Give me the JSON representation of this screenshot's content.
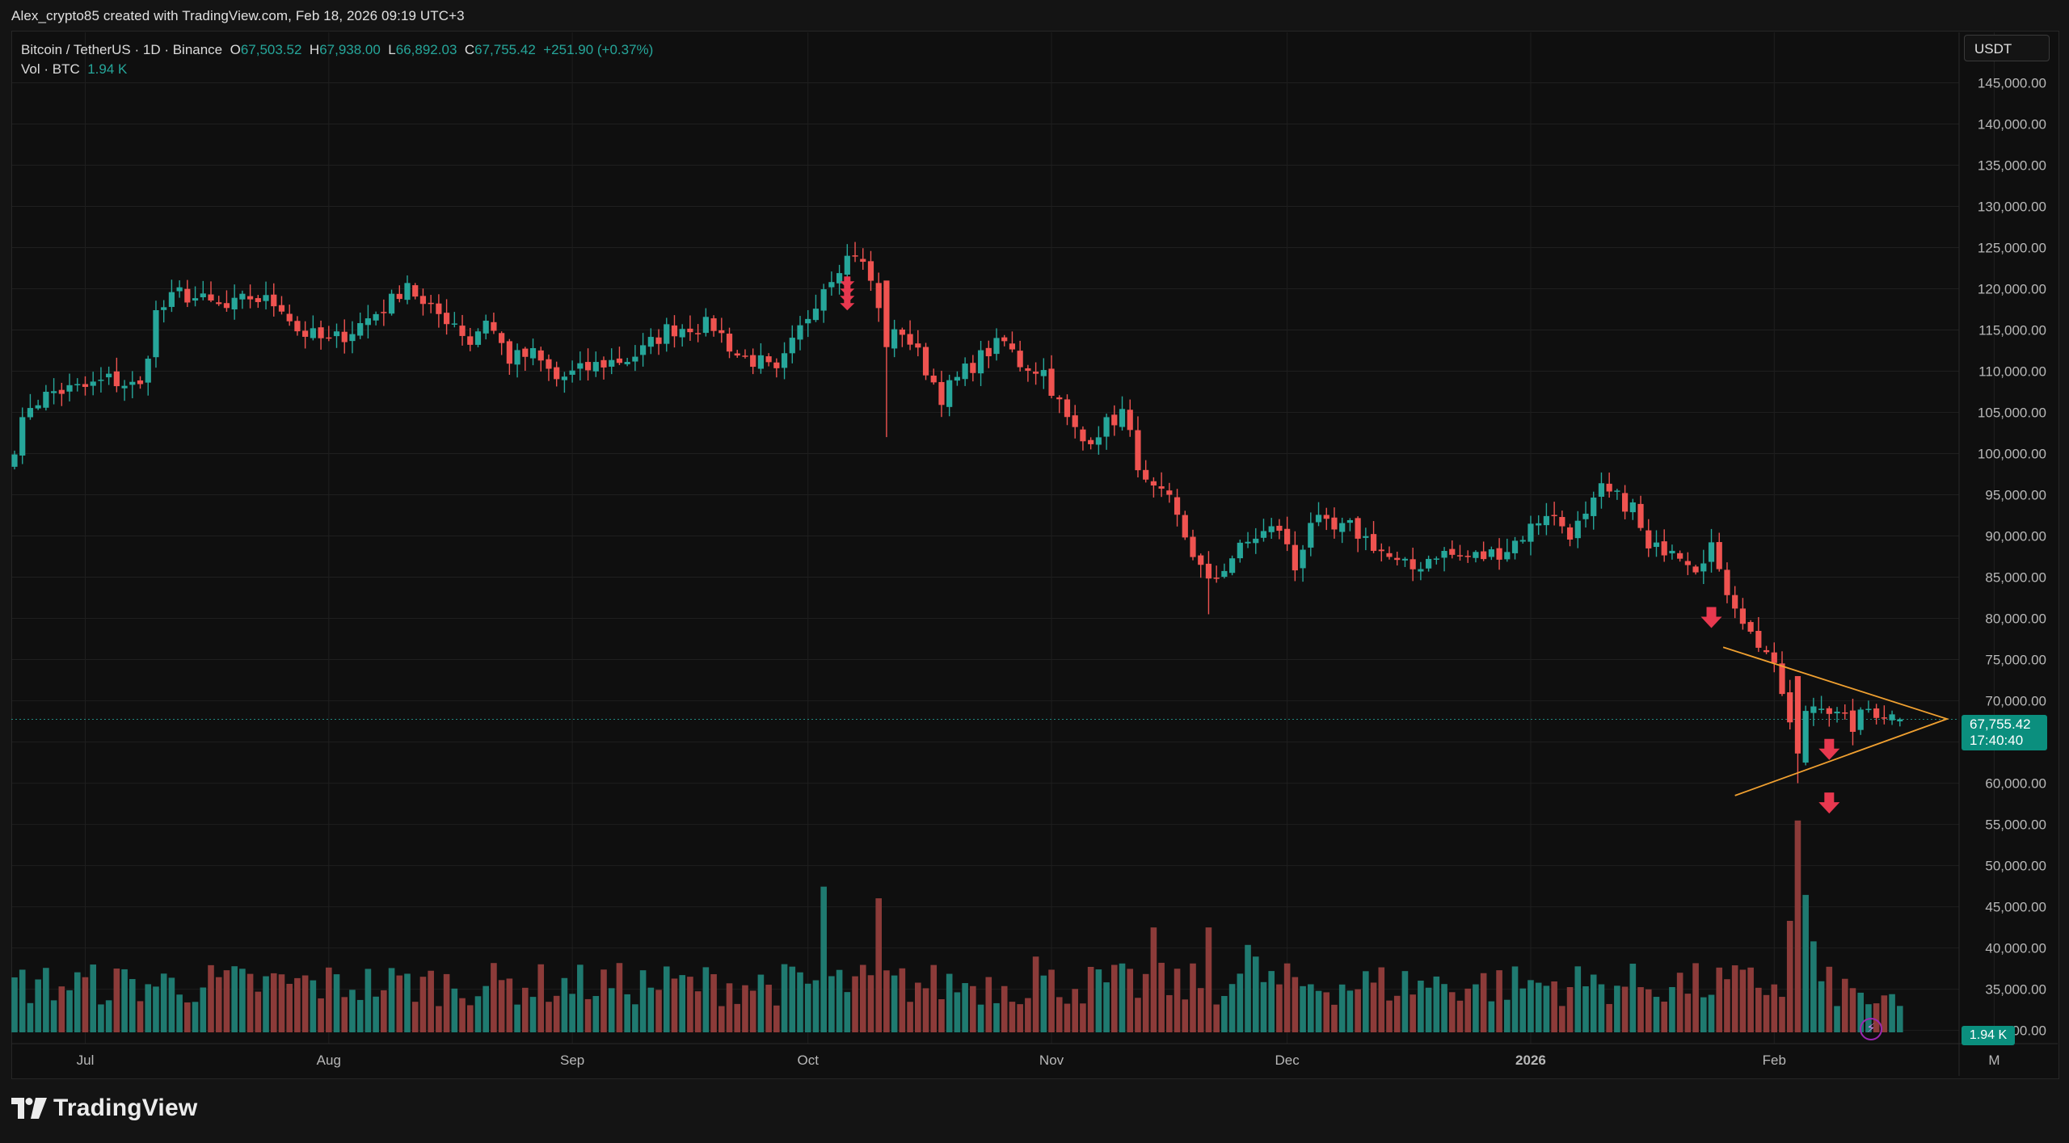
{
  "header": {
    "created_by": "Alex_crypto85 created with TradingView.com, Feb 18, 2026 09:19 UTC+3"
  },
  "legend": {
    "symbol": "Bitcoin / TetherUS · 1D · Binance",
    "open_label": "O",
    "open": "67,503.52",
    "high_label": "H",
    "high": "67,938.00",
    "low_label": "L",
    "low": "66,892.03",
    "close_label": "C",
    "close": "67,755.42",
    "change": "+251.90 (+0.37%)",
    "vol_label": "Vol · BTC",
    "vol_value": "1.94 K"
  },
  "currency": "USDT",
  "price_tag": {
    "price": "67,755.42",
    "countdown": "17:40:40"
  },
  "vol_tag": "1.94 K",
  "branding": {
    "logo_text": "TradingView"
  },
  "colors": {
    "up": "#26a69a",
    "down": "#ef5350",
    "up_vol": "#1f7a70",
    "down_vol": "#8c3b39",
    "triangle": "#f0a030",
    "arrow": "#e8384f",
    "background": "#0f0f0f",
    "grid": "#1f1f1f"
  },
  "chart_data": {
    "type": "candlestick",
    "title": "Bitcoin / TetherUS · 1D · Binance",
    "ylim": [
      29000,
      148500
    ],
    "y_ticks": [
      "145,000.00",
      "140,000.00",
      "135,000.00",
      "130,000.00",
      "125,000.00",
      "120,000.00",
      "115,000.00",
      "110,000.00",
      "105,000.00",
      "100,000.00",
      "95,000.00",
      "90,000.00",
      "85,000.00",
      "80,000.00",
      "75,000.00",
      "70,000.00",
      "65,000.00",
      "60,000.00",
      "55,000.00",
      "50,000.00",
      "45,000.00",
      "40,000.00",
      "35,000.00",
      "30,000.00"
    ],
    "y_tick_values": [
      145000,
      140000,
      135000,
      130000,
      125000,
      120000,
      115000,
      110000,
      105000,
      100000,
      95000,
      90000,
      85000,
      80000,
      75000,
      70000,
      65000,
      60000,
      55000,
      50000,
      45000,
      40000,
      35000,
      30000
    ],
    "x_ticks": [
      {
        "label": "Jul",
        "day": 9
      },
      {
        "label": "Aug",
        "day": 40
      },
      {
        "label": "Sep",
        "day": 71
      },
      {
        "label": "Oct",
        "day": 101
      },
      {
        "label": "Nov",
        "day": 132
      },
      {
        "label": "Dec",
        "day": 162
      },
      {
        "label": "2026",
        "day": 193,
        "bold": true
      },
      {
        "label": "Feb",
        "day": 224
      },
      {
        "label": "M",
        "day": 252
      }
    ],
    "start_date": "2025-06-22",
    "anchors": [
      [
        0,
        101000
      ],
      [
        2,
        106000
      ],
      [
        5,
        107500
      ],
      [
        9,
        108000
      ],
      [
        12,
        109000
      ],
      [
        16,
        108000
      ],
      [
        18,
        117000
      ],
      [
        21,
        119500
      ],
      [
        24,
        118500
      ],
      [
        27,
        117500
      ],
      [
        30,
        119000
      ],
      [
        34,
        118000
      ],
      [
        36,
        115000
      ],
      [
        40,
        113500
      ],
      [
        43,
        115000
      ],
      [
        48,
        118500
      ],
      [
        50,
        121000
      ],
      [
        52,
        117800
      ],
      [
        56,
        116000
      ],
      [
        58,
        113500
      ],
      [
        60,
        116500
      ],
      [
        63,
        111500
      ],
      [
        66,
        112000
      ],
      [
        69,
        109000
      ],
      [
        72,
        110000
      ],
      [
        75,
        111000
      ],
      [
        78,
        111500
      ],
      [
        80,
        112500
      ],
      [
        83,
        115000
      ],
      [
        86,
        115500
      ],
      [
        89,
        115500
      ],
      [
        92,
        112000
      ],
      [
        95,
        111000
      ],
      [
        97,
        109500
      ],
      [
        100,
        115000
      ],
      [
        103,
        120500
      ],
      [
        105,
        123000
      ],
      [
        107,
        124500
      ],
      [
        109,
        121000
      ],
      [
        111,
        113500
      ],
      [
        113,
        115000
      ],
      [
        115,
        112000
      ],
      [
        118,
        107000
      ],
      [
        121,
        110000
      ],
      [
        124,
        112500
      ],
      [
        126,
        113500
      ],
      [
        128,
        111000
      ],
      [
        131,
        110000
      ],
      [
        134,
        104000
      ],
      [
        136,
        101500
      ],
      [
        139,
        103500
      ],
      [
        141,
        105000
      ],
      [
        144,
        96000
      ],
      [
        147,
        94000
      ],
      [
        150,
        88000
      ],
      [
        152,
        84000
      ],
      [
        155,
        87500
      ],
      [
        158,
        90000
      ],
      [
        161,
        91000
      ],
      [
        163,
        86000
      ],
      [
        165,
        92000
      ],
      [
        168,
        90500
      ],
      [
        170,
        91000
      ],
      [
        173,
        89000
      ],
      [
        176,
        86500
      ],
      [
        178,
        86000
      ],
      [
        181,
        88000
      ],
      [
        184,
        87500
      ],
      [
        187,
        87500
      ],
      [
        190,
        88500
      ],
      [
        193,
        91000
      ],
      [
        195,
        93000
      ],
      [
        198,
        90500
      ],
      [
        200,
        92000
      ],
      [
        202,
        95500
      ],
      [
        204,
        94500
      ],
      [
        206,
        93500
      ],
      [
        208,
        88000
      ],
      [
        211,
        89000
      ],
      [
        214,
        86500
      ],
      [
        216,
        89000
      ],
      [
        217,
        85000
      ],
      [
        219,
        82000
      ],
      [
        221,
        78000
      ],
      [
        223,
        76000
      ],
      [
        225,
        71000
      ],
      [
        227,
        63000
      ],
      [
        228,
        69000
      ],
      [
        230,
        70000
      ],
      [
        232,
        68000
      ],
      [
        234,
        67000
      ],
      [
        236,
        69000
      ],
      [
        238,
        68500
      ],
      [
        240,
        67755
      ]
    ],
    "volume_anchors": [
      [
        0,
        1.0
      ],
      [
        225,
        1.0
      ],
      [
        226,
        1.9
      ],
      [
        227,
        3.9
      ],
      [
        228,
        3.2
      ],
      [
        229,
        1.5
      ],
      [
        230,
        1.0
      ],
      [
        240,
        0.5
      ]
    ],
    "volume_spikes": [
      [
        103,
        2.5
      ],
      [
        110,
        2.3
      ],
      [
        130,
        1.3
      ],
      [
        145,
        1.8
      ],
      [
        152,
        1.8
      ],
      [
        157,
        1.5
      ],
      [
        158,
        1.3
      ]
    ],
    "volume_scale_max": 4.2,
    "last_price": 67755.42,
    "triangle": {
      "apex_day": 246,
      "apex_price": 67800,
      "upper_day": 217.5,
      "upper_price": 76500,
      "lower_day": 219,
      "lower_price": 58500
    },
    "arrows": [
      {
        "day": 106,
        "price": 121500,
        "size": "small-stack"
      },
      {
        "day": 216,
        "price": 80000
      },
      {
        "day": 231,
        "price": 64000
      },
      {
        "day": 231,
        "price": 57500
      }
    ],
    "n_days": 241
  }
}
